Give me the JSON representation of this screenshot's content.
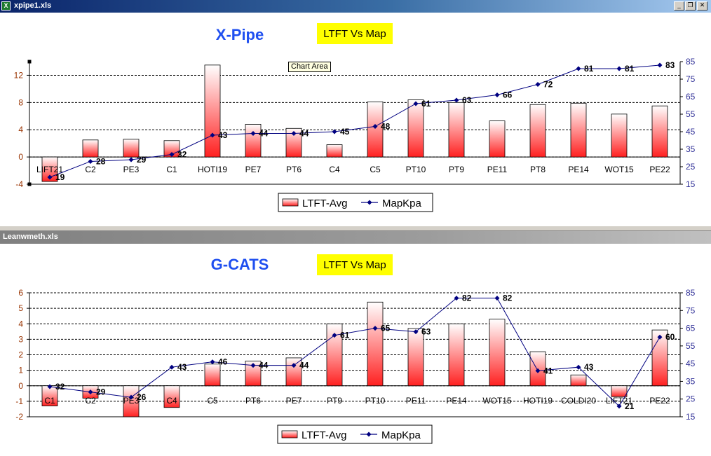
{
  "windows": [
    {
      "title": "xpipe1.xls",
      "active": true
    },
    {
      "title": "Leanwmeth.xls",
      "active": false
    }
  ],
  "window_controls": {
    "minimize": "_",
    "restore": "❐",
    "close": "✕"
  },
  "tooltip": "Chart Area",
  "colors": {
    "bar_top": "#ffffff",
    "bar_bottom": "#ff2020",
    "line": "#000080",
    "title": "#1f4ff0",
    "badge": "#ffff00",
    "left_axis": "#993300",
    "right_axis": "#333399"
  },
  "chart_data": [
    {
      "type": "bar",
      "title": "X-Pipe",
      "subtitle": "LTFT Vs Map",
      "categories": [
        "LIFT21",
        "C2",
        "PE3",
        "C1",
        "HOTI19",
        "PE7",
        "PT6",
        "C4",
        "C5",
        "PT10",
        "PT9",
        "PE11",
        "PT8",
        "PE14",
        "WOT15",
        "PE22"
      ],
      "series": [
        {
          "name": "LTFT-Avg",
          "type": "bar",
          "axis": "left",
          "values": [
            -3.6,
            2.5,
            2.6,
            2.4,
            13.5,
            4.8,
            4.2,
            1.8,
            8.1,
            8.4,
            8.0,
            5.3,
            7.7,
            7.9,
            6.3,
            7.5
          ]
        },
        {
          "name": "MapKpa",
          "type": "line",
          "axis": "right",
          "values": [
            19,
            28,
            29,
            32,
            43,
            44,
            44,
            45,
            48,
            61,
            63,
            66,
            72,
            81,
            81,
            83
          ],
          "labels": [
            "19",
            "28",
            "29",
            "32",
            "43",
            "44",
            "44",
            "45",
            "48",
            "61",
            "63",
            "66",
            "72",
            "81",
            "81",
            "83"
          ]
        }
      ],
      "ylim_left": [
        -4,
        14
      ],
      "yticks_left": [
        -4,
        0,
        4,
        8,
        12
      ],
      "ylim_right": [
        15,
        85
      ],
      "yticks_right": [
        15,
        25,
        35,
        45,
        55,
        65,
        75,
        85
      ],
      "legend": "bottom",
      "grid": true
    },
    {
      "type": "bar",
      "title": "G-CATS",
      "subtitle": "LTFT Vs Map",
      "categories": [
        "C1",
        "C2",
        "PE3",
        "C4",
        "C5",
        "PT6",
        "PE7",
        "PT9",
        "PT10",
        "PE11",
        "PE14",
        "WOT15",
        "HOTI19",
        "COLDI20",
        "LIFT21",
        "PE22"
      ],
      "series": [
        {
          "name": "LTFT-Avg",
          "type": "bar",
          "axis": "left",
          "values": [
            -1.3,
            -0.8,
            -2.0,
            -1.4,
            1.4,
            1.6,
            1.8,
            4.0,
            5.4,
            3.7,
            4.0,
            4.3,
            2.2,
            0.7,
            -0.7,
            3.6
          ]
        },
        {
          "name": "MapKpa",
          "type": "line",
          "axis": "right",
          "values": [
            32,
            29,
            26,
            43,
            46,
            44,
            44,
            61,
            65,
            63,
            82,
            82,
            41,
            43,
            21,
            60
          ],
          "labels": [
            "32",
            "29",
            "26",
            "43",
            "46",
            "44",
            "44",
            "61",
            "65",
            "63",
            "82",
            "82",
            "41",
            "43",
            "21",
            "60."
          ]
        }
      ],
      "ylim_left": [
        -2,
        6
      ],
      "yticks_left": [
        -2,
        -1,
        0,
        1,
        2,
        3,
        4,
        5,
        6
      ],
      "ylim_right": [
        15,
        85
      ],
      "yticks_right": [
        15,
        25,
        35,
        45,
        55,
        65,
        75,
        85
      ],
      "legend": "bottom",
      "grid": true
    }
  ]
}
